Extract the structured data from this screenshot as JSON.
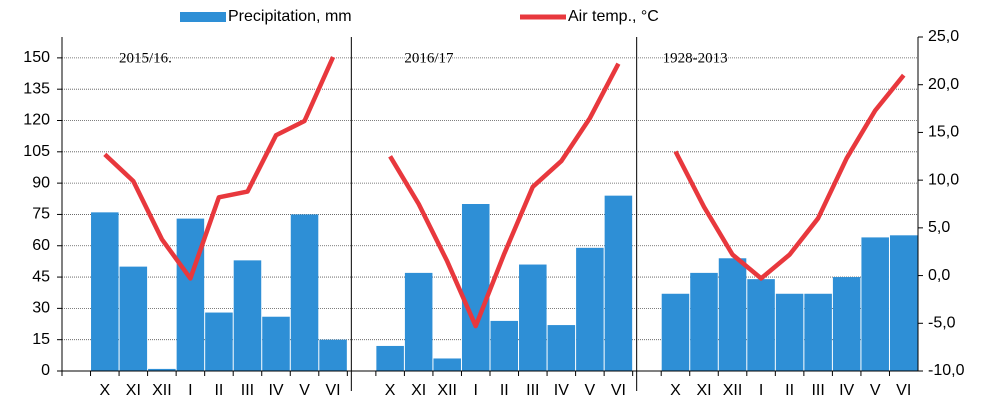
{
  "chart_data": {
    "type": "bar-line",
    "legend_position": "top",
    "annotations": [
      "2015/16.",
      "2016/17",
      "1928-2013"
    ],
    "categories": [
      null,
      "X",
      "XI",
      "XII",
      "I",
      "II",
      "III",
      "IV",
      "V",
      "VI",
      null,
      "X",
      "XI",
      "XII",
      "I",
      "II",
      "III",
      "IV",
      "V",
      "VI",
      null,
      "X",
      "XI",
      "XII",
      "I",
      "II",
      "III",
      "IV",
      "V",
      "VI"
    ],
    "series": [
      {
        "name": "Precipitation, mm",
        "type": "bar",
        "color": "#2e8fd6",
        "axis": "y",
        "values": [
          null,
          76,
          50,
          1,
          73,
          28,
          53,
          26,
          75,
          15,
          null,
          12,
          47,
          6,
          80,
          24,
          51,
          22,
          59,
          84,
          null,
          37,
          47,
          54,
          44,
          37,
          37,
          45,
          64,
          65
        ]
      },
      {
        "name": "Air temp., °C",
        "type": "line",
        "color": "#e8383d",
        "axis": "y2",
        "values": [
          null,
          12.7,
          9.9,
          3.8,
          -0.3,
          8.2,
          8.8,
          14.7,
          16.2,
          22.9,
          null,
          12.5,
          7.5,
          1.5,
          -5.3,
          2.3,
          9.3,
          12.0,
          16.5,
          22.2,
          null,
          13.0,
          7.2,
          2.2,
          -0.3,
          2.2,
          6.0,
          12.3,
          17.3,
          21.0
        ]
      }
    ],
    "ylim": [
      0,
      160
    ],
    "yticks": [
      0,
      15,
      30,
      45,
      60,
      75,
      90,
      105,
      120,
      135,
      150
    ],
    "y2lim": [
      -10,
      25
    ],
    "y2ticks": [
      {
        "value": -10,
        "label": "-10,0"
      },
      {
        "value": -5,
        "label": "-5,0"
      },
      {
        "value": 0,
        "label": "0,0"
      },
      {
        "value": 5,
        "label": "5,0"
      },
      {
        "value": 10,
        "label": "10,0"
      },
      {
        "value": 15,
        "label": "15,0"
      },
      {
        "value": 20,
        "label": "20,0"
      },
      {
        "value": 25,
        "label": "25,0"
      }
    ],
    "grid": true
  }
}
